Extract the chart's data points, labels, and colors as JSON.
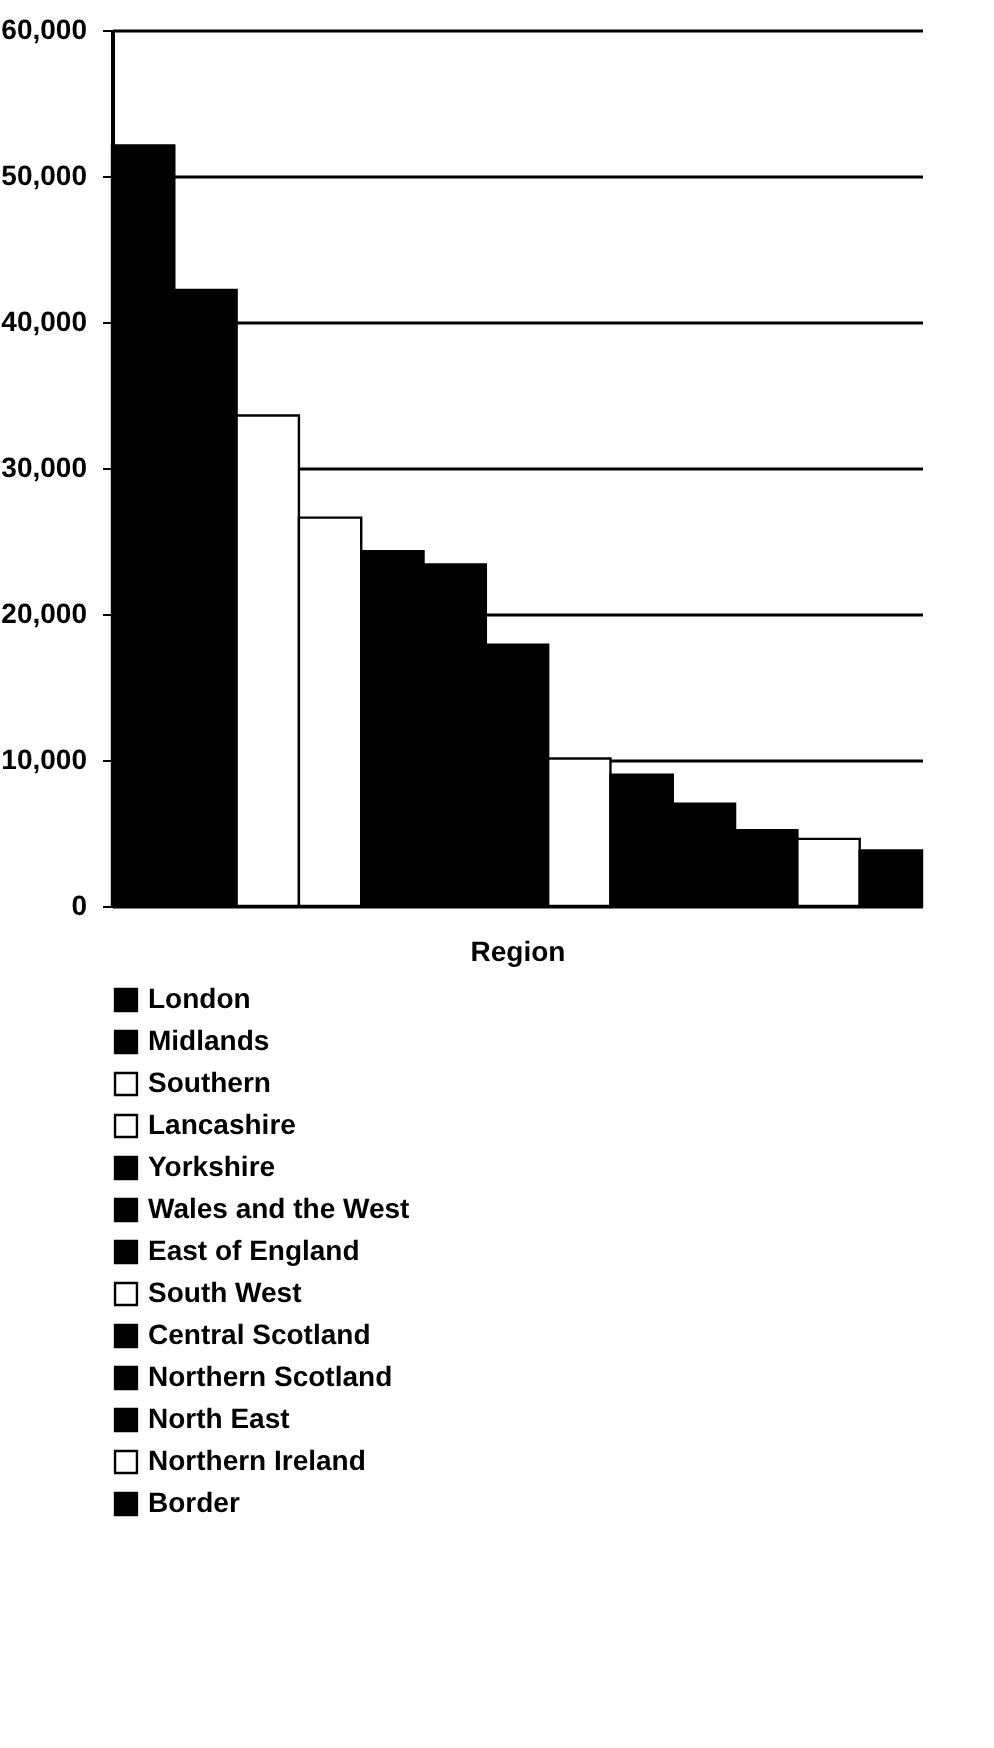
{
  "chart_data": {
    "type": "bar",
    "xlabel": "Region",
    "categories": [
      null
    ],
    "series": [
      {
        "name": "London",
        "color": "#000000",
        "values": [
          52100
        ]
      },
      {
        "name": "Midlands",
        "color": "#000000",
        "values": [
          42200
        ]
      },
      {
        "name": "Southern",
        "color": "#ffffff",
        "values": [
          33600
        ]
      },
      {
        "name": "Lancashire",
        "color": "#ffffff",
        "values": [
          26600
        ]
      },
      {
        "name": "Yorkshire",
        "color": "#000000",
        "values": [
          24300
        ]
      },
      {
        "name": "Wales and the West",
        "color": "#000000",
        "values": [
          23400
        ]
      },
      {
        "name": "East of England",
        "color": "#000000",
        "values": [
          17900
        ]
      },
      {
        "name": "South West",
        "color": "#ffffff",
        "values": [
          10100
        ]
      },
      {
        "name": "Central Scotland",
        "color": "#000000",
        "values": [
          9000
        ]
      },
      {
        "name": "Northern Scotland",
        "color": "#000000",
        "values": [
          7000
        ]
      },
      {
        "name": "North East",
        "color": "#000000",
        "values": [
          5200
        ]
      },
      {
        "name": "Northern Ireland",
        "color": "#ffffff",
        "values": [
          4600
        ]
      },
      {
        "name": "Border",
        "color": "#000000",
        "values": [
          3800
        ]
      }
    ],
    "ylim": [
      0,
      60000
    ],
    "yticks": [
      0,
      {
        "value": 10000,
        "label": "10,000"
      },
      {
        "value": 20000,
        "label": "20,000"
      },
      {
        "value": 30000,
        "label": "30,000"
      },
      {
        "value": 40000,
        "label": "40,000"
      },
      {
        "value": 50000,
        "label": "50,000"
      },
      {
        "value": 60000,
        "label": "60,000"
      }
    ],
    "grid": "y",
    "legend": "bottom"
  }
}
